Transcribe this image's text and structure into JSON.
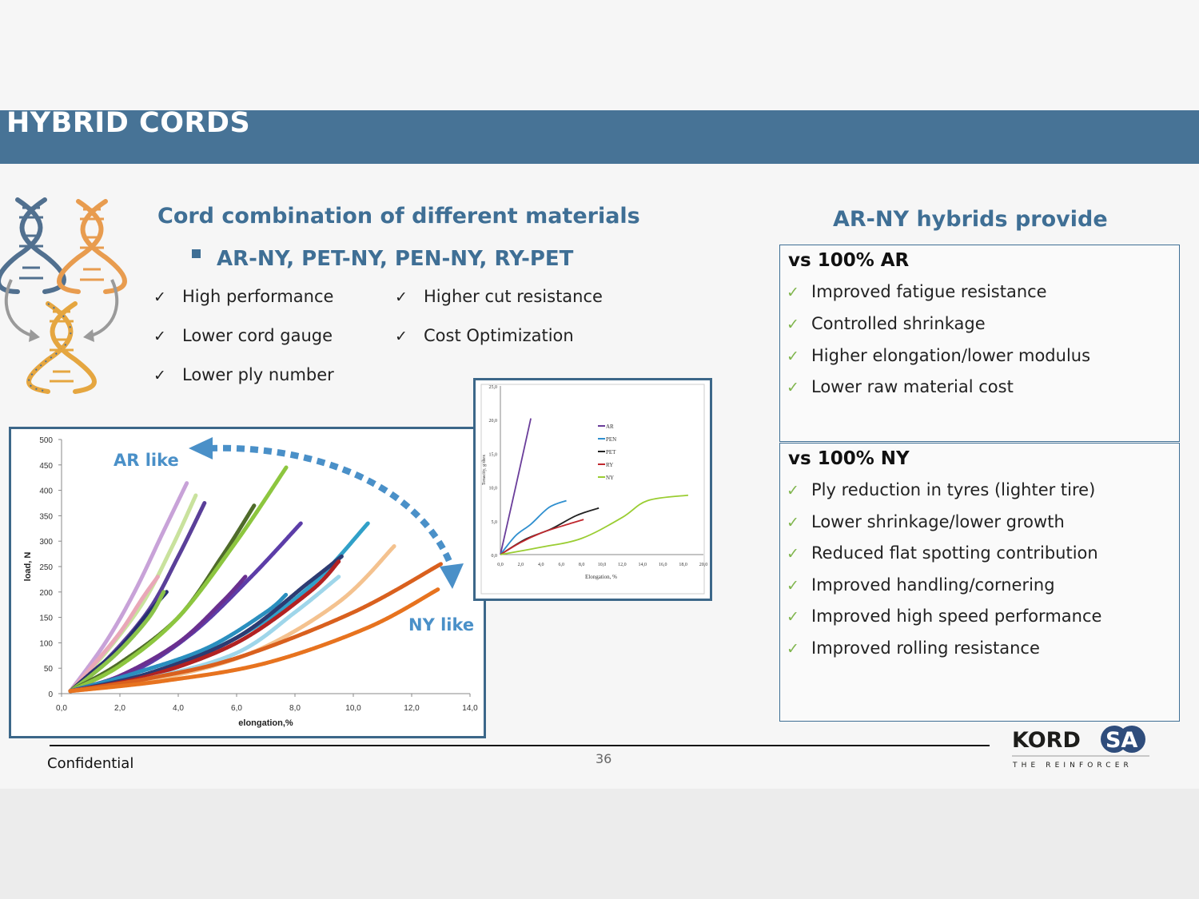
{
  "slide": {
    "title": "HYBRID CORDS",
    "heading": "Cord combination of different materials",
    "subheading": "AR-NY, PET-NY, PEN-NY, RY-PET",
    "features": [
      "High performance",
      "Higher cut resistance",
      "Lower cord gauge",
      "Cost Optimization",
      "Lower ply number"
    ],
    "check_glyph": "✓",
    "right_heading": "AR-NY hybrids provide",
    "vs_ar": {
      "title": "vs 100% AR",
      "items": [
        "Improved fatigue resistance",
        "Controlled shrinkage",
        "Higher elongation/lower modulus",
        "Lower raw material cost"
      ]
    },
    "vs_ny": {
      "title": "vs 100% NY",
      "items": [
        "Ply reduction in tyres (lighter tire)",
        "Lower shrinkage/lower growth",
        "Reduced flat spotting contribution",
        "Improved handling/cornering",
        "Improved high speed performance",
        "Improved rolling resistance"
      ]
    },
    "footer": {
      "confidential": "Confidential",
      "page": "36"
    },
    "logo": {
      "name": "KORDSA",
      "tagline": "THE REINFORCER"
    },
    "colors": {
      "accent": "#3f6f95",
      "title_bar": "#477396",
      "check": "#7fb54c"
    },
    "icons": [
      "dna-double-helix-icon",
      "curved-arrow-icon",
      "check-icon"
    ]
  },
  "chart_data": [
    {
      "type": "line",
      "xlabel": "elongation,%",
      "ylabel": "load, N",
      "xlim": [
        0,
        14
      ],
      "ylim": [
        0,
        500
      ],
      "xticks": [
        "0,0",
        "2,0",
        "4,0",
        "6,0",
        "8,0",
        "10,0",
        "12,0",
        "14,0"
      ],
      "yticks": [
        "0",
        "50",
        "100",
        "150",
        "200",
        "250",
        "300",
        "350",
        "400",
        "450",
        "500"
      ],
      "annotations": [
        "AR like",
        "NY like"
      ],
      "series": [
        {
          "color": "#c8a2d8",
          "x": [
            0.3,
            1.5,
            2.5,
            3.5,
            4.3
          ],
          "y": [
            5,
            100,
            200,
            320,
            415
          ]
        },
        {
          "color": "#c9e29d",
          "x": [
            0.3,
            1.5,
            2.8,
            3.8,
            4.6
          ],
          "y": [
            5,
            80,
            180,
            290,
            390
          ]
        },
        {
          "color": "#5a3f99",
          "x": [
            0.3,
            1.6,
            3.0,
            4.0,
            4.9
          ],
          "y": [
            5,
            70,
            165,
            270,
            375
          ]
        },
        {
          "color": "#e9a7b8",
          "x": [
            0.3,
            1.0,
            2.0,
            2.8,
            3.3
          ],
          "y": [
            5,
            50,
            120,
            190,
            230
          ]
        },
        {
          "color": "#27306f",
          "x": [
            0.3,
            1.0,
            2.0,
            3.0,
            3.6
          ],
          "y": [
            5,
            40,
            90,
            160,
            200
          ]
        },
        {
          "color": "#8bc34a",
          "x": [
            0.3,
            1.0,
            2.0,
            3.0,
            3.5
          ],
          "y": [
            5,
            35,
            85,
            150,
            200
          ]
        },
        {
          "color": "#4f6b2a",
          "x": [
            0.3,
            2.0,
            4.0,
            5.5,
            6.6
          ],
          "y": [
            5,
            60,
            150,
            270,
            370
          ]
        },
        {
          "color": "#8dc63f",
          "x": [
            0.3,
            2.0,
            4.0,
            6.0,
            7.7
          ],
          "y": [
            5,
            55,
            150,
            300,
            445
          ]
        },
        {
          "color": "#5c3da8",
          "x": [
            0.3,
            2.5,
            4.5,
            6.5,
            8.2
          ],
          "y": [
            5,
            45,
            120,
            230,
            335
          ]
        },
        {
          "color": "#6a2f8f",
          "x": [
            0.3,
            2.0,
            4.0,
            5.5,
            6.3
          ],
          "y": [
            5,
            35,
            100,
            180,
            230
          ]
        },
        {
          "color": "#2a8fbf",
          "x": [
            0.3,
            2.5,
            5.0,
            7.0,
            7.7
          ],
          "y": [
            5,
            40,
            90,
            160,
            195
          ]
        },
        {
          "color": "#30a0c8",
          "x": [
            0.3,
            3.0,
            6.0,
            8.5,
            10.5
          ],
          "y": [
            5,
            40,
            110,
            210,
            335
          ]
        },
        {
          "color": "#2d3b72",
          "x": [
            0.3,
            3.0,
            6.0,
            8.5,
            9.6
          ],
          "y": [
            5,
            40,
            110,
            220,
            270
          ]
        },
        {
          "color": "#b22222",
          "x": [
            0.3,
            3.0,
            6.0,
            8.5,
            9.5
          ],
          "y": [
            5,
            35,
            100,
            200,
            260
          ]
        },
        {
          "color": "#9fd6ea",
          "x": [
            0.3,
            3.0,
            6.0,
            8.0,
            9.5
          ],
          "y": [
            5,
            30,
            80,
            160,
            230
          ]
        },
        {
          "color": "#f4c28f",
          "x": [
            0.3,
            3.0,
            6.5,
            9.5,
            11.4
          ],
          "y": [
            5,
            25,
            80,
            180,
            290
          ]
        },
        {
          "color": "#d9601e",
          "x": [
            0.3,
            3.0,
            6.0,
            10.0,
            13.0
          ],
          "y": [
            5,
            30,
            70,
            160,
            255
          ]
        },
        {
          "color": "#e7731f",
          "x": [
            0.3,
            3.5,
            7.0,
            10.5,
            12.9
          ],
          "y": [
            5,
            25,
            60,
            130,
            205
          ]
        }
      ]
    },
    {
      "type": "line",
      "xlabel": "Elongation, %",
      "ylabel": "Tenacity, g/dtex",
      "xlim": [
        0,
        20
      ],
      "ylim": [
        0,
        25
      ],
      "xticks": [
        "0,0",
        "2,0",
        "4,0",
        "6,0",
        "8,0",
        "10,0",
        "12,0",
        "14,0",
        "16,0",
        "18,0",
        "20,0"
      ],
      "yticks": [
        "0,0",
        "5,0",
        "10,0",
        "15,0",
        "20,0",
        "25,0"
      ],
      "series": [
        {
          "name": "AR",
          "color": "#6a3d9a",
          "x": [
            0.0,
            1.5,
            3.0
          ],
          "y": [
            0.0,
            10.0,
            20.2
          ]
        },
        {
          "name": "PEN",
          "color": "#2f8fcf",
          "x": [
            0.0,
            1.5,
            3.0,
            4.8,
            6.5
          ],
          "y": [
            0.0,
            2.8,
            4.5,
            7.0,
            8.0
          ]
        },
        {
          "name": "PET",
          "color": "#222222",
          "x": [
            0.0,
            2.5,
            5.0,
            7.5,
            9.7
          ],
          "y": [
            0.0,
            2.3,
            3.8,
            5.8,
            6.9
          ]
        },
        {
          "name": "RY",
          "color": "#c0282e",
          "x": [
            0.0,
            2.0,
            4.0,
            6.0,
            8.2
          ],
          "y": [
            0.0,
            1.8,
            3.2,
            4.2,
            5.2
          ]
        },
        {
          "name": "NY",
          "color": "#9acd32",
          "x": [
            0.0,
            4.0,
            8.0,
            12.0,
            14.5,
            18.5
          ],
          "y": [
            0.0,
            1.1,
            2.4,
            5.5,
            8.0,
            8.8
          ]
        }
      ]
    }
  ]
}
